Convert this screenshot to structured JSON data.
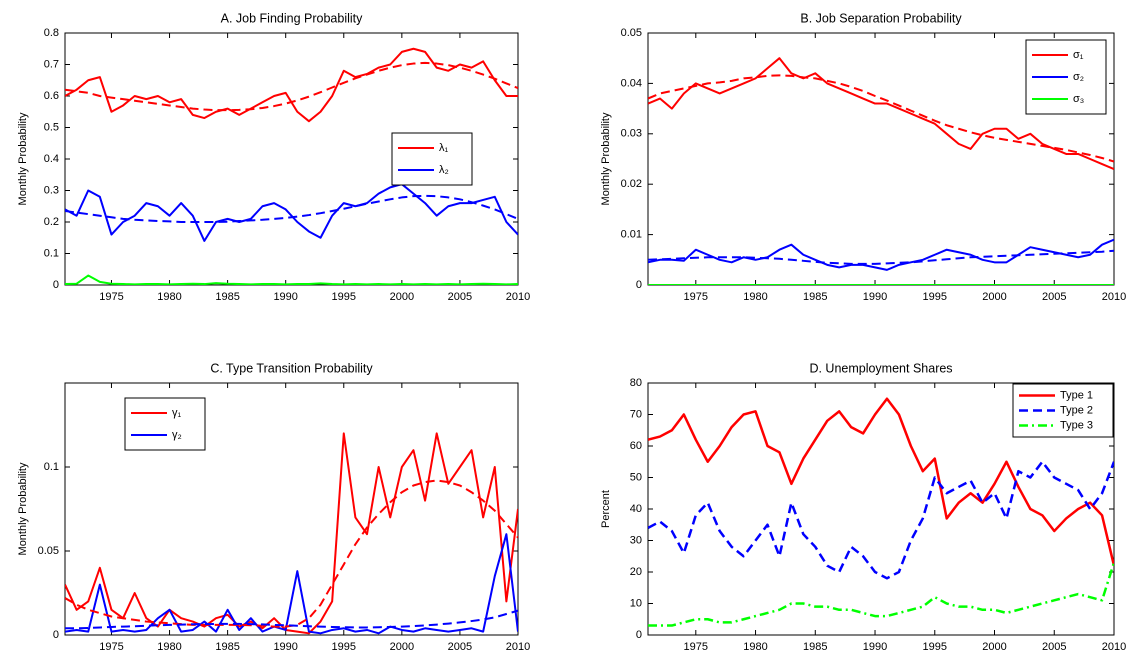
{
  "chart_data": [
    {
      "type": "line",
      "title": "A. Job Finding Probability",
      "y_label": "Monthly Probability",
      "x": [
        1971,
        1972,
        1973,
        1974,
        1975,
        1976,
        1977,
        1978,
        1979,
        1980,
        1981,
        1982,
        1983,
        1984,
        1985,
        1986,
        1987,
        1988,
        1989,
        1990,
        1991,
        1992,
        1993,
        1994,
        1995,
        1996,
        1997,
        1998,
        1999,
        2000,
        2001,
        2002,
        2003,
        2004,
        2005,
        2006,
        2007,
        2008,
        2009,
        2010
      ],
      "xlim": [
        1971,
        2010
      ],
      "xticks": [
        1975,
        1980,
        1985,
        1990,
        1995,
        2000,
        2005,
        2010
      ],
      "ylim": [
        0,
        0.8
      ],
      "yticks": [
        0,
        0.1,
        0.2,
        0.3,
        0.4,
        0.5,
        0.6,
        0.7,
        0.8
      ],
      "legend": "center right",
      "series": [
        {
          "name": "λ₁",
          "color": "#ff0000",
          "dash": "solid",
          "values": [
            0.6,
            0.62,
            0.65,
            0.66,
            0.55,
            0.57,
            0.6,
            0.59,
            0.6,
            0.58,
            0.59,
            0.54,
            0.53,
            0.55,
            0.56,
            0.54,
            0.56,
            0.58,
            0.6,
            0.61,
            0.55,
            0.52,
            0.55,
            0.6,
            0.68,
            0.66,
            0.67,
            0.69,
            0.7,
            0.74,
            0.75,
            0.74,
            0.69,
            0.68,
            0.7,
            0.69,
            0.71,
            0.65,
            0.6,
            0.6
          ]
        },
        {
          "name": "λ₂",
          "color": "#0000ff",
          "dash": "solid",
          "values": [
            0.24,
            0.22,
            0.3,
            0.28,
            0.16,
            0.2,
            0.22,
            0.26,
            0.25,
            0.22,
            0.26,
            0.22,
            0.14,
            0.2,
            0.21,
            0.2,
            0.21,
            0.25,
            0.26,
            0.24,
            0.2,
            0.17,
            0.15,
            0.22,
            0.26,
            0.25,
            0.26,
            0.29,
            0.31,
            0.32,
            0.29,
            0.26,
            0.22,
            0.25,
            0.26,
            0.26,
            0.27,
            0.28,
            0.2,
            0.16
          ]
        },
        {
          "color": "#00ff00",
          "dash": "solid",
          "values": [
            0.003,
            0.004,
            0.03,
            0.01,
            0.004,
            0.003,
            0.002,
            0.003,
            0.003,
            0.002,
            0.003,
            0.004,
            0.003,
            0.006,
            0.004,
            0.003,
            0.002,
            0.003,
            0.003,
            0.002,
            0.003,
            0.003,
            0.005,
            0.003,
            0.002,
            0.003,
            0.002,
            0.003,
            0.002,
            0.003,
            0.002,
            0.003,
            0.002,
            0.003,
            0.002,
            0.003,
            0.004,
            0.003,
            0.002,
            0.003
          ]
        },
        {
          "color": "#ff0000",
          "dash": "dashed",
          "values": [
            0.62,
            0.615,
            0.61,
            0.6,
            0.595,
            0.59,
            0.585,
            0.58,
            0.575,
            0.57,
            0.565,
            0.56,
            0.557,
            0.555,
            0.555,
            0.556,
            0.558,
            0.562,
            0.568,
            0.576,
            0.586,
            0.598,
            0.612,
            0.627,
            0.642,
            0.656,
            0.668,
            0.68,
            0.69,
            0.698,
            0.703,
            0.705,
            0.703,
            0.698,
            0.69,
            0.68,
            0.668,
            0.655,
            0.64,
            0.625
          ]
        },
        {
          "color": "#0000ff",
          "dash": "dashed",
          "values": [
            0.235,
            0.23,
            0.225,
            0.22,
            0.215,
            0.21,
            0.207,
            0.205,
            0.203,
            0.202,
            0.2,
            0.2,
            0.2,
            0.2,
            0.201,
            0.203,
            0.205,
            0.207,
            0.21,
            0.213,
            0.217,
            0.222,
            0.228,
            0.235,
            0.242,
            0.25,
            0.258,
            0.265,
            0.272,
            0.278,
            0.282,
            0.283,
            0.282,
            0.278,
            0.272,
            0.263,
            0.252,
            0.24,
            0.225,
            0.21
          ]
        }
      ]
    },
    {
      "type": "line",
      "title": "B. Job Separation Probability",
      "y_label": "Monthly Probability",
      "x": [
        1971,
        1972,
        1973,
        1974,
        1975,
        1976,
        1977,
        1978,
        1979,
        1980,
        1981,
        1982,
        1983,
        1984,
        1985,
        1986,
        1987,
        1988,
        1989,
        1990,
        1991,
        1992,
        1993,
        1994,
        1995,
        1996,
        1997,
        1998,
        1999,
        2000,
        2001,
        2002,
        2003,
        2004,
        2005,
        2006,
        2007,
        2008,
        2009,
        2010
      ],
      "xlim": [
        1971,
        2010
      ],
      "xticks": [
        1975,
        1980,
        1985,
        1990,
        1995,
        2000,
        2005,
        2010
      ],
      "ylim": [
        0,
        0.05
      ],
      "yticks": [
        0,
        0.01,
        0.02,
        0.03,
        0.04,
        0.05
      ],
      "legend": "upper right",
      "series": [
        {
          "name": "σ₁",
          "color": "#ff0000",
          "dash": "solid",
          "values": [
            0.036,
            0.037,
            0.035,
            0.038,
            0.04,
            0.039,
            0.038,
            0.039,
            0.04,
            0.041,
            0.043,
            0.045,
            0.042,
            0.041,
            0.042,
            0.04,
            0.039,
            0.038,
            0.037,
            0.036,
            0.036,
            0.035,
            0.034,
            0.033,
            0.032,
            0.03,
            0.028,
            0.027,
            0.03,
            0.031,
            0.031,
            0.029,
            0.03,
            0.028,
            0.027,
            0.026,
            0.026,
            0.025,
            0.024,
            0.023
          ]
        },
        {
          "name": "σ₂",
          "color": "#0000ff",
          "dash": "solid",
          "values": [
            0.0045,
            0.005,
            0.005,
            0.0048,
            0.007,
            0.006,
            0.005,
            0.0045,
            0.0055,
            0.005,
            0.0055,
            0.007,
            0.008,
            0.006,
            0.005,
            0.004,
            0.0035,
            0.004,
            0.004,
            0.0035,
            0.003,
            0.004,
            0.0045,
            0.005,
            0.006,
            0.007,
            0.0065,
            0.006,
            0.005,
            0.0045,
            0.0045,
            0.006,
            0.0075,
            0.007,
            0.0065,
            0.006,
            0.0055,
            0.006,
            0.008,
            0.009
          ]
        },
        {
          "name": "σ₃",
          "color": "#00ff00",
          "dash": "solid",
          "values": [
            0,
            0,
            0,
            0,
            0,
            0,
            0,
            0,
            0,
            0,
            0,
            0,
            0,
            0,
            0,
            0,
            0,
            0,
            0,
            0,
            0,
            0,
            0,
            0,
            0,
            0,
            0,
            0,
            0,
            0,
            0,
            0,
            0,
            0,
            0,
            0,
            0,
            0,
            0,
            0
          ]
        },
        {
          "color": "#ff0000",
          "dash": "dashed",
          "values": [
            0.037,
            0.038,
            0.0385,
            0.039,
            0.0395,
            0.04,
            0.0402,
            0.0405,
            0.041,
            0.0412,
            0.0415,
            0.0416,
            0.0415,
            0.0412,
            0.041,
            0.0405,
            0.04,
            0.0393,
            0.0385,
            0.0375,
            0.0366,
            0.0356,
            0.0346,
            0.0336,
            0.0326,
            0.0317,
            0.031,
            0.0303,
            0.0297,
            0.0292,
            0.0288,
            0.0284,
            0.028,
            0.0276,
            0.0272,
            0.0268,
            0.0263,
            0.0258,
            0.0252,
            0.0245
          ]
        },
        {
          "color": "#0000ff",
          "dash": "dashed",
          "values": [
            0.005,
            0.0051,
            0.0052,
            0.0053,
            0.0054,
            0.0055,
            0.0055,
            0.0055,
            0.0055,
            0.0054,
            0.0053,
            0.0052,
            0.005,
            0.0048,
            0.0046,
            0.0044,
            0.0043,
            0.0042,
            0.0042,
            0.0042,
            0.0043,
            0.0044,
            0.0045,
            0.0047,
            0.0049,
            0.0051,
            0.0053,
            0.0055,
            0.0056,
            0.0057,
            0.0058,
            0.0059,
            0.006,
            0.0061,
            0.0062,
            0.0063,
            0.0064,
            0.0065,
            0.0066,
            0.0068
          ]
        }
      ]
    },
    {
      "type": "line",
      "title": "C. Type Transition Probability",
      "y_label": "Monthly Probability",
      "x": [
        1971,
        1972,
        1973,
        1974,
        1975,
        1976,
        1977,
        1978,
        1979,
        1980,
        1981,
        1982,
        1983,
        1984,
        1985,
        1986,
        1987,
        1988,
        1989,
        1990,
        1991,
        1992,
        1993,
        1994,
        1995,
        1996,
        1997,
        1998,
        1999,
        2000,
        2001,
        2002,
        2003,
        2004,
        2005,
        2006,
        2007,
        2008,
        2009,
        2010
      ],
      "xlim": [
        1971,
        2010
      ],
      "xticks": [
        1975,
        1980,
        1985,
        1990,
        1995,
        2000,
        2005,
        2010
      ],
      "ylim": [
        0,
        0.15
      ],
      "yticks": [
        0,
        0.05,
        0.1
      ],
      "legend": "upper left",
      "series": [
        {
          "name": "γ₁",
          "color": "#ff0000",
          "dash": "solid",
          "values": [
            0.03,
            0.015,
            0.02,
            0.04,
            0.015,
            0.01,
            0.025,
            0.01,
            0.005,
            0.015,
            0.01,
            0.008,
            0.005,
            0.01,
            0.012,
            0.005,
            0.008,
            0.004,
            0.01,
            0.003,
            0.002,
            0.001,
            0.008,
            0.02,
            0.12,
            0.07,
            0.06,
            0.1,
            0.07,
            0.1,
            0.11,
            0.08,
            0.12,
            0.09,
            0.1,
            0.11,
            0.07,
            0.1,
            0.02,
            0.075
          ]
        },
        {
          "name": "γ₂",
          "color": "#0000ff",
          "dash": "solid",
          "values": [
            0.002,
            0.003,
            0.002,
            0.03,
            0.002,
            0.003,
            0.002,
            0.003,
            0.01,
            0.015,
            0.002,
            0.003,
            0.008,
            0.002,
            0.015,
            0.003,
            0.01,
            0.002,
            0.005,
            0.003,
            0.038,
            0.002,
            0.001,
            0.003,
            0.004,
            0.002,
            0.003,
            0.001,
            0.005,
            0.003,
            0.002,
            0.004,
            0.003,
            0.002,
            0.003,
            0.004,
            0.002,
            0.035,
            0.06,
            0.002
          ]
        },
        {
          "color": "#ff0000",
          "dash": "dashed",
          "values": [
            0.022,
            0.018,
            0.015,
            0.013,
            0.011,
            0.01,
            0.009,
            0.008,
            0.0075,
            0.007,
            0.0065,
            0.006,
            0.006,
            0.006,
            0.006,
            0.006,
            0.0058,
            0.0055,
            0.005,
            0.005,
            0.006,
            0.01,
            0.018,
            0.03,
            0.042,
            0.054,
            0.064,
            0.072,
            0.079,
            0.085,
            0.089,
            0.091,
            0.092,
            0.091,
            0.089,
            0.085,
            0.08,
            0.074,
            0.066,
            0.058
          ]
        },
        {
          "color": "#0000ff",
          "dash": "dashed",
          "values": [
            0.004,
            0.004,
            0.0042,
            0.0045,
            0.0048,
            0.005,
            0.0052,
            0.0055,
            0.0058,
            0.006,
            0.0062,
            0.0064,
            0.0065,
            0.0066,
            0.0066,
            0.0066,
            0.0065,
            0.0063,
            0.006,
            0.0058,
            0.0055,
            0.0052,
            0.005,
            0.0048,
            0.0046,
            0.0045,
            0.0045,
            0.0046,
            0.0048,
            0.005,
            0.0053,
            0.0057,
            0.0062,
            0.0068,
            0.0075,
            0.0083,
            0.0092,
            0.0105,
            0.0125,
            0.0145
          ]
        }
      ]
    },
    {
      "type": "line",
      "title": "D. Unemployment Shares",
      "y_label": "Percent",
      "x": [
        1971,
        1972,
        1973,
        1974,
        1975,
        1976,
        1977,
        1978,
        1979,
        1980,
        1981,
        1982,
        1983,
        1984,
        1985,
        1986,
        1987,
        1988,
        1989,
        1990,
        1991,
        1992,
        1993,
        1994,
        1995,
        1996,
        1997,
        1998,
        1999,
        2000,
        2001,
        2002,
        2003,
        2004,
        2005,
        2006,
        2007,
        2008,
        2009,
        2010
      ],
      "xlim": [
        1971,
        2010
      ],
      "xticks": [
        1975,
        1980,
        1985,
        1990,
        1995,
        2000,
        2005,
        2010
      ],
      "ylim": [
        0,
        80
      ],
      "yticks": [
        0,
        10,
        20,
        30,
        40,
        50,
        60,
        70,
        80
      ],
      "legend": "upper right",
      "series": [
        {
          "name": "Type 1",
          "color": "#ff0000",
          "dash": "solid",
          "values": [
            62,
            63,
            65,
            70,
            62,
            55,
            60,
            66,
            70,
            71,
            60,
            58,
            48,
            56,
            62,
            68,
            71,
            66,
            64,
            70,
            75,
            70,
            60,
            52,
            56,
            37,
            42,
            45,
            42,
            48,
            55,
            47,
            40,
            38,
            33,
            37,
            40,
            42,
            38,
            22
          ]
        },
        {
          "name": "Type 2",
          "color": "#0000ff",
          "dash": "dashed",
          "values": [
            34,
            36,
            33,
            26,
            38,
            42,
            33,
            28,
            25,
            30,
            35,
            25,
            42,
            32,
            28,
            22,
            20,
            28,
            25,
            20,
            18,
            20,
            30,
            37,
            50,
            45,
            47,
            49,
            42,
            45,
            37,
            52,
            50,
            55,
            50,
            48,
            46,
            40,
            45,
            55
          ]
        },
        {
          "name": "Type 3",
          "color": "#00ff00",
          "dash": "dashdot",
          "values": [
            3,
            3,
            3,
            4,
            5,
            5,
            4,
            4,
            5,
            6,
            7,
            8,
            10,
            10,
            9,
            9,
            8,
            8,
            7,
            6,
            6,
            7,
            8,
            9,
            12,
            10,
            9,
            9,
            8,
            8,
            7,
            8,
            9,
            10,
            11,
            12,
            13,
            12,
            11,
            23
          ]
        }
      ]
    }
  ]
}
